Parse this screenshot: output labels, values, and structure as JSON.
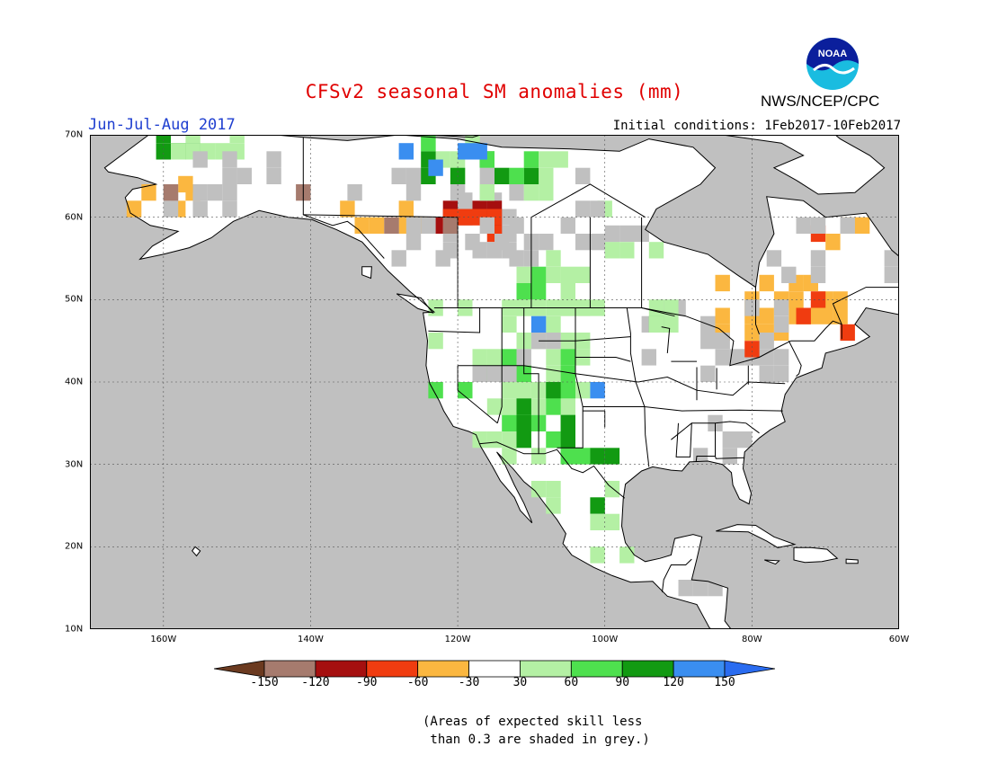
{
  "title": "CFSv2 seasonal SM anomalies (mm)",
  "season": "Jun-Jul-Aug 2017",
  "initial_conditions": "Initial conditions: 1Feb2017-10Feb2017",
  "agency": "NWS/NCEP/CPC",
  "logo": {
    "text": "NOAA",
    "icon": "noaa-logo"
  },
  "map": {
    "lon_range": [
      -170,
      -60
    ],
    "lat_range": [
      10,
      70
    ],
    "lon_ticks": [
      {
        "value": -160,
        "label": "160W"
      },
      {
        "value": -140,
        "label": "140W"
      },
      {
        "value": -120,
        "label": "120W"
      },
      {
        "value": -100,
        "label": "100W"
      },
      {
        "value": -80,
        "label": "80W"
      },
      {
        "value": -60,
        "label": "60W"
      }
    ],
    "lat_ticks": [
      {
        "value": 10,
        "label": "10N"
      },
      {
        "value": 20,
        "label": "20N"
      },
      {
        "value": 30,
        "label": "30N"
      },
      {
        "value": 40,
        "label": "40N"
      },
      {
        "value": 50,
        "label": "50N"
      },
      {
        "value": 60,
        "label": "60N"
      },
      {
        "value": 70,
        "label": "70N"
      }
    ],
    "ocean_color": "#c0c0c0",
    "land_color": "#ffffff",
    "grid": "dotted"
  },
  "legend": {
    "labels": [
      "-150",
      "-120",
      "-90",
      "-60",
      "-30",
      "30",
      "60",
      "90",
      "120",
      "150"
    ],
    "colors": [
      "#6b3a20",
      "#a67b6e",
      "#a50f0f",
      "#f03c10",
      "#fbb740",
      "#ffffff",
      "#b4f0a4",
      "#4ee04e",
      "#129a12",
      "#3a8ef0",
      "#2a6cf0"
    ]
  },
  "note": "(Areas of expected skill less\n than 0.3 are shaded in grey.)"
}
